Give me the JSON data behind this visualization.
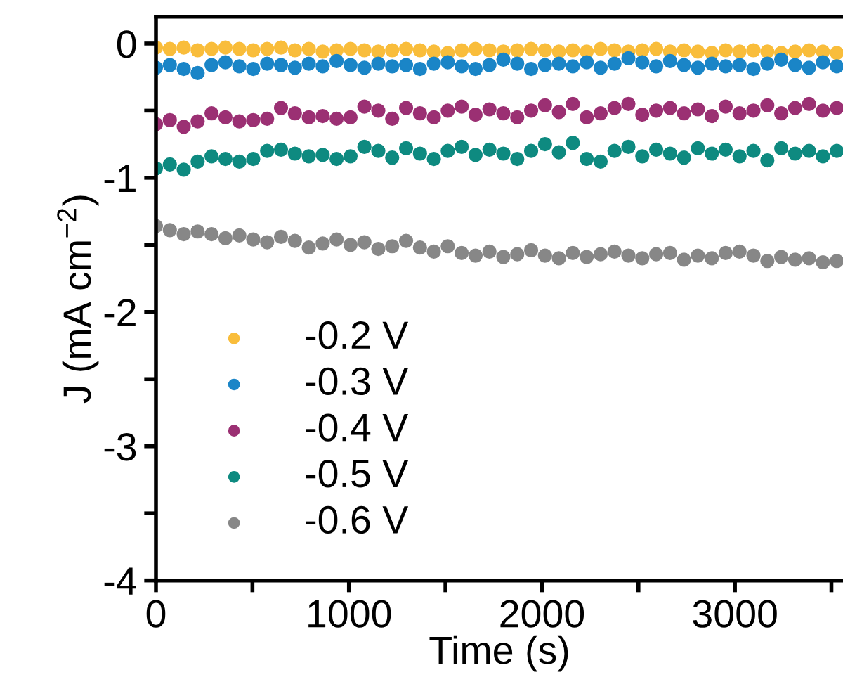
{
  "chart_data": {
    "type": "scatter",
    "xlabel": "Time (s)",
    "ylabel": "J (mA cm$^{−2}$)",
    "x": [
      0,
      72,
      144,
      216,
      288,
      360,
      432,
      504,
      576,
      648,
      720,
      792,
      864,
      936,
      1008,
      1080,
      1152,
      1224,
      1296,
      1368,
      1440,
      1512,
      1584,
      1656,
      1728,
      1800,
      1872,
      1944,
      2016,
      2088,
      2160,
      2232,
      2304,
      2376,
      2448,
      2520,
      2592,
      2664,
      2736,
      2808,
      2880,
      2952,
      3024,
      3096,
      3168,
      3240,
      3312,
      3384,
      3456,
      3528
    ],
    "series": [
      {
        "name": "-0.2 V",
        "color": "#f9bd3b",
        "values": [
          -0.03,
          -0.04,
          -0.03,
          -0.05,
          -0.04,
          -0.03,
          -0.04,
          -0.05,
          -0.04,
          -0.03,
          -0.05,
          -0.04,
          -0.06,
          -0.05,
          -0.04,
          -0.05,
          -0.06,
          -0.05,
          -0.04,
          -0.05,
          -0.06,
          -0.07,
          -0.05,
          -0.04,
          -0.05,
          -0.06,
          -0.05,
          -0.04,
          -0.05,
          -0.06,
          -0.05,
          -0.06,
          -0.04,
          -0.05,
          -0.06,
          -0.05,
          -0.04,
          -0.06,
          -0.05,
          -0.06,
          -0.07,
          -0.05,
          -0.06,
          -0.05,
          -0.06,
          -0.07,
          -0.06,
          -0.05,
          -0.06,
          -0.07
        ]
      },
      {
        "name": "-0.3 V",
        "color": "#1a85c7",
        "values": [
          -0.18,
          -0.16,
          -0.19,
          -0.22,
          -0.16,
          -0.14,
          -0.17,
          -0.19,
          -0.15,
          -0.16,
          -0.18,
          -0.15,
          -0.17,
          -0.13,
          -0.16,
          -0.18,
          -0.15,
          -0.17,
          -0.16,
          -0.19,
          -0.15,
          -0.14,
          -0.17,
          -0.19,
          -0.16,
          -0.12,
          -0.15,
          -0.19,
          -0.16,
          -0.15,
          -0.17,
          -0.14,
          -0.18,
          -0.15,
          -0.11,
          -0.14,
          -0.17,
          -0.13,
          -0.16,
          -0.18,
          -0.15,
          -0.17,
          -0.16,
          -0.19,
          -0.15,
          -0.12,
          -0.16,
          -0.18,
          -0.14,
          -0.17
        ]
      },
      {
        "name": "-0.4 V",
        "color": "#9b3073",
        "values": [
          -0.6,
          -0.57,
          -0.62,
          -0.58,
          -0.52,
          -0.55,
          -0.58,
          -0.57,
          -0.56,
          -0.48,
          -0.52,
          -0.55,
          -0.54,
          -0.56,
          -0.55,
          -0.47,
          -0.5,
          -0.56,
          -0.48,
          -0.52,
          -0.55,
          -0.5,
          -0.47,
          -0.53,
          -0.49,
          -0.52,
          -0.55,
          -0.5,
          -0.46,
          -0.51,
          -0.45,
          -0.55,
          -0.52,
          -0.48,
          -0.45,
          -0.53,
          -0.5,
          -0.48,
          -0.52,
          -0.49,
          -0.54,
          -0.47,
          -0.52,
          -0.5,
          -0.46,
          -0.52,
          -0.48,
          -0.45,
          -0.5,
          -0.48
        ]
      },
      {
        "name": "-0.5 V",
        "color": "#0e8a80",
        "values": [
          -0.93,
          -0.9,
          -0.94,
          -0.88,
          -0.84,
          -0.86,
          -0.88,
          -0.86,
          -0.8,
          -0.79,
          -0.82,
          -0.84,
          -0.83,
          -0.86,
          -0.84,
          -0.77,
          -0.8,
          -0.85,
          -0.78,
          -0.82,
          -0.86,
          -0.8,
          -0.77,
          -0.83,
          -0.79,
          -0.82,
          -0.86,
          -0.8,
          -0.75,
          -0.81,
          -0.74,
          -0.86,
          -0.88,
          -0.8,
          -0.77,
          -0.84,
          -0.79,
          -0.82,
          -0.85,
          -0.78,
          -0.82,
          -0.79,
          -0.84,
          -0.8,
          -0.87,
          -0.78,
          -0.82,
          -0.8,
          -0.84,
          -0.8
        ]
      },
      {
        "name": "-0.6 V",
        "color": "#878787",
        "values": [
          -1.36,
          -1.39,
          -1.42,
          -1.4,
          -1.42,
          -1.45,
          -1.43,
          -1.46,
          -1.48,
          -1.44,
          -1.47,
          -1.52,
          -1.49,
          -1.46,
          -1.5,
          -1.48,
          -1.53,
          -1.51,
          -1.47,
          -1.52,
          -1.55,
          -1.51,
          -1.56,
          -1.58,
          -1.55,
          -1.59,
          -1.57,
          -1.54,
          -1.58,
          -1.6,
          -1.56,
          -1.59,
          -1.57,
          -1.55,
          -1.58,
          -1.6,
          -1.57,
          -1.56,
          -1.61,
          -1.58,
          -1.6,
          -1.56,
          -1.55,
          -1.58,
          -1.62,
          -1.59,
          -1.61,
          -1.6,
          -1.63,
          -1.62
        ]
      }
    ],
    "xlim": [
      0,
      3560
    ],
    "ylim": [
      -4,
      0.2
    ],
    "xticks": [
      0,
      {
        "value": 500,
        "label": null
      },
      1000,
      {
        "value": 1500,
        "label": null
      },
      2000,
      {
        "value": 2500,
        "label": null
      },
      3000,
      {
        "value": 3500,
        "label": null
      }
    ],
    "yticks": [
      {
        "value": -4,
        "label": "-4"
      },
      {
        "value": -3.5,
        "label": null
      },
      {
        "value": -3,
        "label": "-3"
      },
      {
        "value": -2.5,
        "label": null
      },
      {
        "value": -2,
        "label": "-2"
      },
      {
        "value": -1.5,
        "label": null
      },
      {
        "value": -1,
        "label": "-1"
      },
      {
        "value": -0.5,
        "label": null
      },
      {
        "value": 0,
        "label": "0"
      }
    ],
    "marker": "circle",
    "legend": "bottom left",
    "grid": false
  }
}
